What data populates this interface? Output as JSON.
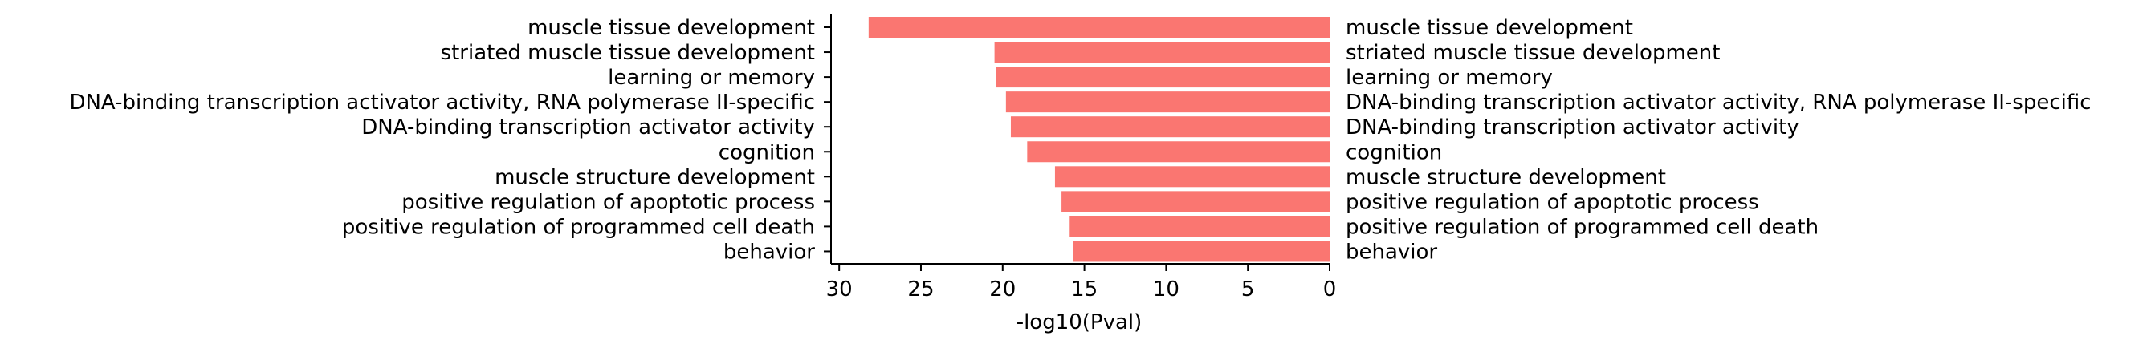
{
  "chart_data": {
    "type": "bar",
    "orientation": "horizontal",
    "x_direction": "reversed",
    "categories": [
      "muscle tissue development",
      "striated muscle tissue development",
      "learning or memory",
      "DNA-binding transcription activator activity, RNA polymerase II-specific",
      "DNA-binding transcription activator activity",
      "cognition",
      "muscle structure development",
      "positive regulation of apoptotic process",
      "positive regulation of programmed cell death",
      "behavior"
    ],
    "values": [
      28.2,
      20.5,
      20.4,
      19.8,
      19.5,
      18.5,
      16.8,
      16.4,
      15.9,
      15.7
    ],
    "xlabel": "-log10(Pval)",
    "ylabel": "",
    "xlim": [
      30.5,
      0
    ],
    "xticks": [
      30,
      25,
      20,
      15,
      10,
      5,
      0
    ],
    "xtick_labels": [
      "30",
      "25",
      "20",
      "15",
      "10",
      "5",
      "0"
    ],
    "right_labels": true,
    "grid": false,
    "colors": {
      "bar": "#fa7671",
      "axis": "#000000",
      "text": "#000000"
    }
  }
}
